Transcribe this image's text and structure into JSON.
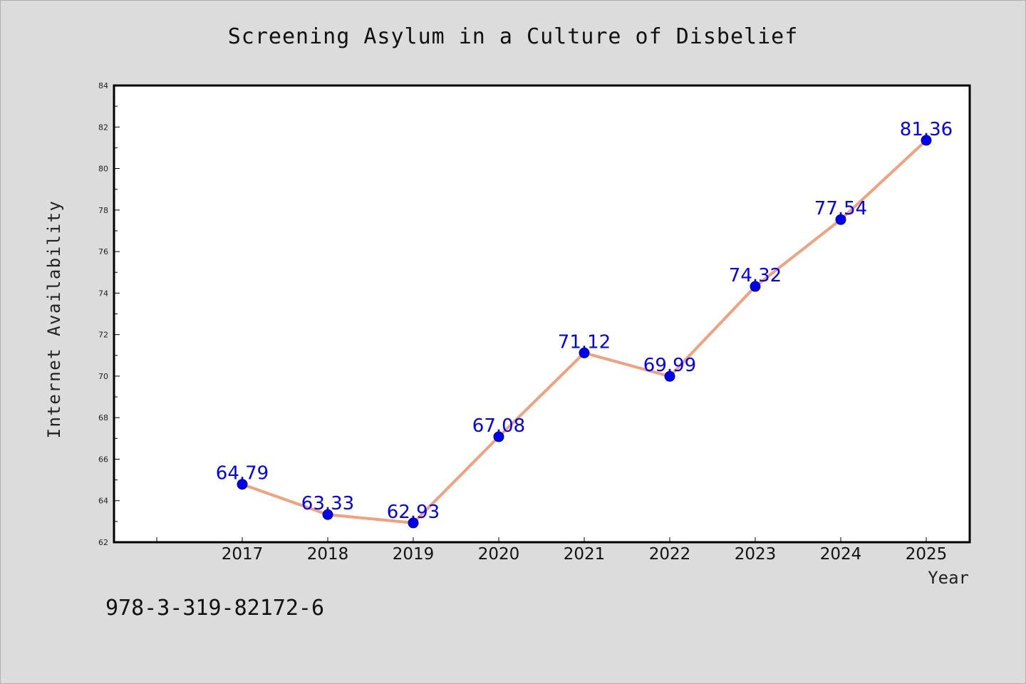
{
  "chart_data": {
    "type": "line",
    "title": "Screening Asylum in a Culture of Disbelief",
    "xlabel": "Year",
    "ylabel": "Internet Availability",
    "categories": [
      "2017",
      "2018",
      "2019",
      "2020",
      "2021",
      "2022",
      "2023",
      "2024",
      "2025"
    ],
    "series": [
      {
        "values": [
          64.79,
          63.33,
          62.93,
          67.08,
          71.12,
          69.99,
          74.32,
          77.54,
          81.36
        ],
        "data_labels": [
          "64.79",
          "63.33",
          "62.93",
          "67.08",
          "71.12",
          "69.99",
          "74.32",
          "77.54",
          "81.36"
        ]
      }
    ],
    "ylim": [
      62,
      84
    ],
    "yticks": [
      "62",
      "64",
      "66",
      "68",
      "70",
      "72",
      "74",
      "76",
      "78",
      "80",
      "82",
      "84"
    ],
    "grid": false,
    "line_color": "#f4a07c",
    "marker_color": "#0000ee",
    "label_color": "#0000ff"
  },
  "footer": {
    "isbn": "978-3-319-82172-6"
  }
}
